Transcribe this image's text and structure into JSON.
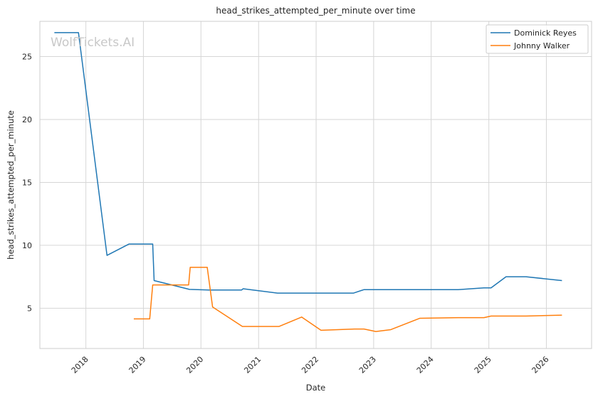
{
  "chart_data": {
    "type": "line",
    "title": "head_strikes_attempted_per_minute over time",
    "xlabel": "Date",
    "ylabel": "head_strikes_attempted_per_minute",
    "watermark": "WolfTickets.AI",
    "x_axis_type": "date",
    "xlim": [
      "2017-03-15",
      "2026-10-15"
    ],
    "ylim": [
      1.8,
      27.8
    ],
    "x_ticks": [
      "2018-01-01",
      "2019-01-01",
      "2020-01-01",
      "2021-01-01",
      "2022-01-01",
      "2023-01-01",
      "2024-01-01",
      "2025-01-01",
      "2026-01-01"
    ],
    "x_tick_labels": [
      "2018",
      "2019",
      "2020",
      "2021",
      "2022",
      "2023",
      "2024",
      "2025",
      "2026"
    ],
    "y_ticks": [
      5,
      10,
      15,
      20,
      25
    ],
    "y_tick_labels": [
      "5",
      "10",
      "15",
      "20",
      "25"
    ],
    "grid": true,
    "legend_position": "top-right",
    "series": [
      {
        "name": "Dominick Reyes",
        "color": "#1f77b4",
        "points": [
          [
            "2017-06-15",
            26.9
          ],
          [
            "2017-11-15",
            26.9
          ],
          [
            "2018-05-15",
            9.2
          ],
          [
            "2018-10-01",
            10.1
          ],
          [
            "2019-03-01",
            10.1
          ],
          [
            "2019-03-10",
            7.2
          ],
          [
            "2019-10-20",
            6.5
          ],
          [
            "2020-02-20",
            6.45
          ],
          [
            "2020-09-15",
            6.45
          ],
          [
            "2020-09-25",
            6.55
          ],
          [
            "2021-05-01",
            6.2
          ],
          [
            "2022-08-25",
            6.2
          ],
          [
            "2022-11-01",
            6.48
          ],
          [
            "2024-06-20",
            6.48
          ],
          [
            "2024-12-01",
            6.62
          ],
          [
            "2025-01-15",
            6.62
          ],
          [
            "2025-04-20",
            7.5
          ],
          [
            "2025-08-25",
            7.5
          ],
          [
            "2026-04-10",
            7.2
          ]
        ]
      },
      {
        "name": "Johnny Walker",
        "color": "#ff7f0e",
        "points": [
          [
            "2018-11-01",
            4.15
          ],
          [
            "2019-02-10",
            4.15
          ],
          [
            "2019-03-01",
            6.85
          ],
          [
            "2019-10-15",
            6.85
          ],
          [
            "2019-10-25",
            8.25
          ],
          [
            "2020-02-10",
            8.25
          ],
          [
            "2020-03-15",
            5.1
          ],
          [
            "2020-09-20",
            3.55
          ],
          [
            "2021-05-10",
            3.55
          ],
          [
            "2021-10-01",
            4.3
          ],
          [
            "2022-02-01",
            3.25
          ],
          [
            "2022-09-01",
            3.35
          ],
          [
            "2022-11-01",
            3.35
          ],
          [
            "2023-01-15",
            3.15
          ],
          [
            "2023-04-20",
            3.3
          ],
          [
            "2023-10-20",
            4.2
          ],
          [
            "2024-06-20",
            4.25
          ],
          [
            "2024-12-01",
            4.25
          ],
          [
            "2025-01-15",
            4.38
          ],
          [
            "2025-08-25",
            4.38
          ],
          [
            "2026-04-10",
            4.45
          ]
        ]
      }
    ]
  }
}
